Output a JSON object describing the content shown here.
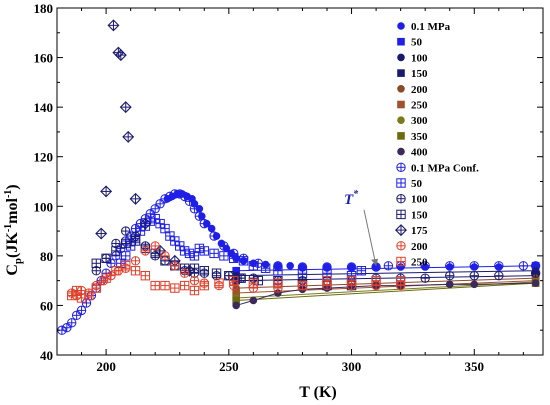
{
  "chart_data": {
    "type": "scatter",
    "title": "",
    "xlabel": "T (K)",
    "ylabel_main": "C",
    "ylabel_sub": "p",
    "ylabel_unit_a": "(JK",
    "ylabel_sup_a": "-1",
    "ylabel_unit_b": "mol",
    "ylabel_sup_b": "-1",
    "ylabel_close": ")",
    "xlim": [
      180,
      378
    ],
    "ylim": [
      40,
      180
    ],
    "xticks": [
      200,
      250,
      300,
      350
    ],
    "yticks": [
      40,
      60,
      80,
      100,
      120,
      140,
      160,
      180
    ],
    "grid": false,
    "legend_position": "top-right",
    "annotation": {
      "text": "T",
      "sup": "*",
      "arrow_tip": [
        310,
        76
      ],
      "label_at": [
        301,
        101
      ]
    },
    "colors": {
      "blue": "#1f1fe6",
      "navy": "#1a1a6e",
      "brown": "#8a4a2a",
      "rust": "#a0522d",
      "olive": "#7a7a1a",
      "olive_dark": "#6b6b10",
      "purple_dark": "#3c2a5a",
      "red": "#e0402a"
    },
    "series": [
      {
        "name": "0.1 MPa",
        "marker": "circle-filled",
        "color": "#1f1fe6",
        "x": [
          225,
          227,
          229,
          231,
          233,
          235,
          236,
          238,
          239,
          241,
          243,
          245,
          247,
          249,
          251,
          253,
          256,
          260,
          265,
          270,
          275,
          280,
          290,
          300,
          310,
          320,
          330,
          340,
          350,
          360,
          375
        ],
        "y": [
          103,
          104,
          105,
          105,
          104,
          103,
          101,
          99,
          96,
          93,
          91,
          88,
          85,
          83,
          81,
          79,
          78,
          77,
          76.5,
          76,
          76,
          75.5,
          75.5,
          75.5,
          75.5,
          75.5,
          75.5,
          75.5,
          75.5,
          75.5,
          75.5
        ]
      },
      {
        "name": "50",
        "marker": "square-filled",
        "color": "#1f1fe6",
        "x": [
          253,
          375
        ],
        "y": [
          74,
          76
        ]
      },
      {
        "name": "100",
        "marker": "circle-filled",
        "color": "#1a1a6e",
        "x": [
          253,
          375
        ],
        "y": [
          72,
          74
        ]
      },
      {
        "name": "150",
        "marker": "square-filled",
        "color": "#1a1a6e",
        "x": [
          253,
          375
        ],
        "y": [
          70,
          72
        ]
      },
      {
        "name": "200",
        "marker": "circle-filled",
        "color": "#8a4a2a",
        "x": [
          253,
          375
        ],
        "y": [
          67,
          71
        ]
      },
      {
        "name": "250",
        "marker": "square-filled",
        "color": "#a0522d",
        "x": [
          253,
          375
        ],
        "y": [
          65,
          70
        ]
      },
      {
        "name": "300",
        "marker": "circle-filled",
        "color": "#7a7a1a",
        "x": [
          253,
          375
        ],
        "y": [
          63,
          69.5
        ]
      },
      {
        "name": "350",
        "marker": "square-filled",
        "color": "#6b6b10",
        "x": [
          253,
          375
        ],
        "y": [
          62,
          69
        ]
      },
      {
        "name": "400",
        "marker": "circle-filled",
        "color": "#3c2a5a",
        "x": [
          253,
          260,
          270,
          280,
          290,
          300,
          310,
          320,
          340,
          350,
          375
        ],
        "y": [
          60,
          62,
          65,
          66.5,
          67,
          67.5,
          68,
          68,
          68.5,
          68.5,
          69
        ]
      },
      {
        "name": "0.1 MPa Conf.",
        "marker": "circle-plus",
        "color": "#1f1fe6",
        "x": [
          182,
          184,
          186,
          188,
          190,
          192,
          194,
          196,
          198,
          200,
          202,
          204,
          206,
          208,
          210,
          212,
          214,
          216,
          218,
          220,
          222,
          224,
          226,
          228,
          230,
          232,
          234,
          236,
          238,
          240,
          244,
          248,
          252,
          256,
          262,
          270,
          280,
          290,
          300,
          310,
          315,
          320,
          330,
          340,
          350,
          360,
          370,
          375
        ],
        "y": [
          50,
          51,
          53,
          56,
          58,
          61,
          64,
          67,
          70,
          73,
          77,
          80,
          83,
          86,
          88,
          91,
          93,
          95,
          97,
          99,
          101,
          103,
          104,
          105,
          105,
          104,
          102,
          99,
          96,
          93,
          88,
          84,
          81,
          79,
          77,
          76,
          75.5,
          75.5,
          75.5,
          75.5,
          76,
          76,
          76,
          76,
          76,
          76,
          76,
          76
        ]
      },
      {
        "name": "50",
        "marker": "square-plus",
        "color": "#1f1fe6",
        "x": [
          206,
          208,
          210,
          212,
          214,
          216,
          218,
          220,
          222,
          224,
          226,
          228,
          230,
          232,
          234,
          236,
          238,
          240,
          244,
          248,
          252,
          256,
          260,
          265,
          270,
          280,
          290,
          300,
          304
        ],
        "y": [
          77,
          80,
          84,
          87,
          90,
          92,
          94,
          95,
          93,
          91,
          88,
          86,
          84,
          82,
          81,
          80,
          83,
          82,
          81,
          80,
          79,
          78,
          76,
          75,
          74,
          73,
          73,
          72,
          74
        ]
      },
      {
        "name": "100",
        "marker": "circle-plus",
        "color": "#1a1a6e",
        "x": [
          196,
          200,
          204,
          208,
          212,
          216,
          220,
          224,
          228,
          232,
          236,
          240,
          245,
          250,
          255,
          260,
          270,
          280,
          290,
          300,
          310,
          320,
          330,
          340,
          350,
          360,
          375
        ],
        "y": [
          74,
          79,
          85,
          90,
          88,
          84,
          80,
          78,
          76,
          74,
          73,
          73,
          72,
          72,
          71,
          71,
          70,
          70,
          70,
          70,
          71,
          71,
          71,
          72,
          72,
          72,
          73
        ]
      },
      {
        "name": "150",
        "marker": "square-plus",
        "color": "#1a1a6e",
        "x": [
          196,
          200,
          204,
          208,
          212,
          216,
          220,
          224,
          228,
          232,
          236,
          240,
          245,
          250,
          255,
          262,
          270,
          280,
          290,
          300
        ],
        "y": [
          77,
          79,
          82,
          85,
          86,
          83,
          81,
          78,
          76,
          75,
          75,
          74,
          73,
          72,
          71,
          70,
          70,
          69,
          68,
          68
        ]
      },
      {
        "name": "175",
        "marker": "diamond-plus",
        "color": "#1a1a6e",
        "x": [
          198,
          200,
          203,
          205,
          206,
          208,
          209,
          212,
          216,
          222,
          228,
          234
        ],
        "y": [
          89,
          106,
          173,
          162,
          161,
          140,
          128,
          103,
          93,
          82,
          78,
          74
        ]
      },
      {
        "name": "200",
        "marker": "circle-plus",
        "color": "#e0402a",
        "x": [
          186,
          188,
          190,
          193,
          196,
          199,
          202,
          205,
          208,
          212,
          216,
          220,
          224,
          228,
          232,
          236,
          240,
          246,
          252,
          260,
          270,
          280,
          290,
          300,
          310,
          320
        ],
        "y": [
          65,
          64,
          66,
          65,
          68,
          70,
          72,
          74,
          75,
          78,
          82,
          84,
          80,
          76,
          73,
          70,
          69,
          68,
          68,
          67,
          67,
          68,
          68,
          68,
          68,
          68
        ]
      },
      {
        "name": "250",
        "marker": "square-plus",
        "color": "#e0402a",
        "x": [
          186,
          188,
          190,
          193,
          196,
          200,
          204,
          208,
          212,
          216,
          220,
          224,
          228,
          232,
          236,
          240,
          246,
          252,
          260,
          270,
          280,
          290,
          300,
          310,
          320
        ],
        "y": [
          64,
          66,
          63,
          64,
          67,
          71,
          74,
          76,
          74,
          72,
          68,
          68,
          67,
          68,
          66,
          68,
          69,
          70,
          69,
          69,
          68,
          70,
          70,
          70,
          70
        ]
      }
    ]
  }
}
